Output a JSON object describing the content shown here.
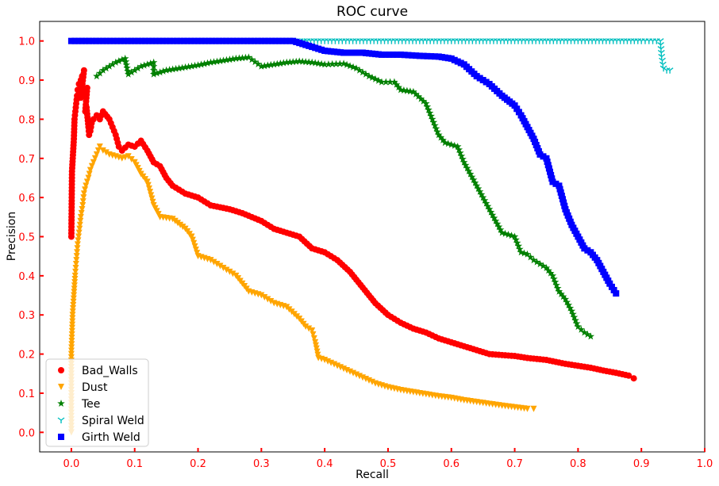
{
  "chart_data": {
    "type": "scatter",
    "title": "ROC curve",
    "xlabel": "Recall",
    "ylabel": "Precision",
    "xlim": [
      -0.05,
      1.0
    ],
    "ylim": [
      -0.05,
      1.05
    ],
    "xticks": [
      0.0,
      0.1,
      0.2,
      0.3,
      0.4,
      0.5,
      0.6,
      0.7,
      0.8,
      0.9,
      1.0
    ],
    "xtick_labels": [
      "0.0",
      "0.1",
      "0.2",
      "0.3",
      "0.4",
      "0.5",
      "0.6",
      "0.7",
      "0.8",
      "0.9",
      "1.0"
    ],
    "yticks": [
      0.0,
      0.1,
      0.2,
      0.3,
      0.4,
      0.5,
      0.6,
      0.7,
      0.8,
      0.9,
      1.0
    ],
    "ytick_labels": [
      "0.0",
      "0.1",
      "0.2",
      "0.3",
      "0.4",
      "0.5",
      "0.6",
      "0.7",
      "0.8",
      "0.9",
      "1.0"
    ],
    "tick_color": "#ff0000",
    "grid": false,
    "legend_position": "lower-left",
    "series": [
      {
        "name": "Bad_Walls",
        "color": "#ff0000",
        "marker": "circle",
        "points": [
          [
            0.0,
            0.5
          ],
          [
            0.001,
            0.667
          ],
          [
            0.004,
            0.75
          ],
          [
            0.005,
            0.8
          ],
          [
            0.007,
            0.83
          ],
          [
            0.009,
            0.86
          ],
          [
            0.01,
            0.875
          ],
          [
            0.012,
            0.89
          ],
          [
            0.015,
            0.9
          ],
          [
            0.017,
            0.91
          ],
          [
            0.02,
            0.925
          ],
          [
            0.015,
            0.855
          ],
          [
            0.018,
            0.86
          ],
          [
            0.022,
            0.87
          ],
          [
            0.025,
            0.88
          ],
          [
            0.022,
            0.82
          ],
          [
            0.024,
            0.83
          ],
          [
            0.027,
            0.78
          ],
          [
            0.028,
            0.76
          ],
          [
            0.03,
            0.77
          ],
          [
            0.032,
            0.79
          ],
          [
            0.035,
            0.8
          ],
          [
            0.04,
            0.81
          ],
          [
            0.045,
            0.8
          ],
          [
            0.05,
            0.82
          ],
          [
            0.06,
            0.8
          ],
          [
            0.065,
            0.78
          ],
          [
            0.07,
            0.76
          ],
          [
            0.075,
            0.73
          ],
          [
            0.08,
            0.72
          ],
          [
            0.09,
            0.735
          ],
          [
            0.1,
            0.73
          ],
          [
            0.11,
            0.745
          ],
          [
            0.12,
            0.72
          ],
          [
            0.13,
            0.69
          ],
          [
            0.14,
            0.68
          ],
          [
            0.15,
            0.65
          ],
          [
            0.16,
            0.63
          ],
          [
            0.18,
            0.61
          ],
          [
            0.2,
            0.6
          ],
          [
            0.22,
            0.58
          ],
          [
            0.25,
            0.57
          ],
          [
            0.27,
            0.56
          ],
          [
            0.3,
            0.54
          ],
          [
            0.32,
            0.52
          ],
          [
            0.34,
            0.51
          ],
          [
            0.36,
            0.5
          ],
          [
            0.38,
            0.47
          ],
          [
            0.4,
            0.46
          ],
          [
            0.42,
            0.44
          ],
          [
            0.44,
            0.41
          ],
          [
            0.46,
            0.37
          ],
          [
            0.48,
            0.33
          ],
          [
            0.5,
            0.3
          ],
          [
            0.52,
            0.28
          ],
          [
            0.54,
            0.265
          ],
          [
            0.56,
            0.255
          ],
          [
            0.58,
            0.24
          ],
          [
            0.6,
            0.23
          ],
          [
            0.62,
            0.22
          ],
          [
            0.64,
            0.21
          ],
          [
            0.66,
            0.2
          ],
          [
            0.7,
            0.195
          ],
          [
            0.72,
            0.19
          ],
          [
            0.75,
            0.185
          ],
          [
            0.78,
            0.175
          ],
          [
            0.8,
            0.17
          ],
          [
            0.82,
            0.165
          ],
          [
            0.84,
            0.158
          ],
          [
            0.86,
            0.152
          ],
          [
            0.88,
            0.145
          ],
          [
            0.888,
            0.138
          ]
        ]
      },
      {
        "name": "Dust",
        "color": "#ffa500",
        "marker": "triangle_down",
        "points": [
          [
            0.0,
            0.0
          ],
          [
            0.0,
            0.1
          ],
          [
            0.0,
            0.15
          ],
          [
            0.0,
            0.2
          ],
          [
            0.001,
            0.25
          ],
          [
            0.002,
            0.3
          ],
          [
            0.004,
            0.35
          ],
          [
            0.006,
            0.4
          ],
          [
            0.008,
            0.44
          ],
          [
            0.01,
            0.48
          ],
          [
            0.013,
            0.52
          ],
          [
            0.015,
            0.55
          ],
          [
            0.018,
            0.58
          ],
          [
            0.02,
            0.61
          ],
          [
            0.023,
            0.63
          ],
          [
            0.027,
            0.65
          ],
          [
            0.03,
            0.67
          ],
          [
            0.035,
            0.69
          ],
          [
            0.04,
            0.71
          ],
          [
            0.045,
            0.73
          ],
          [
            0.05,
            0.72
          ],
          [
            0.06,
            0.71
          ],
          [
            0.07,
            0.705
          ],
          [
            0.08,
            0.7
          ],
          [
            0.09,
            0.705
          ],
          [
            0.1,
            0.69
          ],
          [
            0.11,
            0.66
          ],
          [
            0.12,
            0.64
          ],
          [
            0.13,
            0.58
          ],
          [
            0.14,
            0.55
          ],
          [
            0.16,
            0.545
          ],
          [
            0.18,
            0.52
          ],
          [
            0.19,
            0.5
          ],
          [
            0.2,
            0.45
          ],
          [
            0.22,
            0.44
          ],
          [
            0.24,
            0.42
          ],
          [
            0.26,
            0.4
          ],
          [
            0.28,
            0.36
          ],
          [
            0.3,
            0.35
          ],
          [
            0.32,
            0.33
          ],
          [
            0.34,
            0.32
          ],
          [
            0.36,
            0.29
          ],
          [
            0.37,
            0.27
          ],
          [
            0.38,
            0.26
          ],
          [
            0.385,
            0.23
          ],
          [
            0.39,
            0.19
          ],
          [
            0.4,
            0.185
          ],
          [
            0.42,
            0.17
          ],
          [
            0.44,
            0.155
          ],
          [
            0.46,
            0.14
          ],
          [
            0.48,
            0.125
          ],
          [
            0.5,
            0.115
          ],
          [
            0.52,
            0.108
          ],
          [
            0.55,
            0.1
          ],
          [
            0.58,
            0.092
          ],
          [
            0.6,
            0.088
          ],
          [
            0.62,
            0.082
          ],
          [
            0.65,
            0.075
          ],
          [
            0.68,
            0.068
          ],
          [
            0.7,
            0.064
          ],
          [
            0.72,
            0.06
          ],
          [
            0.73,
            0.06
          ]
        ]
      },
      {
        "name": "Tee",
        "color": "#008000",
        "marker": "star",
        "points": [
          [
            0.04,
            0.91
          ],
          [
            0.05,
            0.925
          ],
          [
            0.06,
            0.935
          ],
          [
            0.07,
            0.945
          ],
          [
            0.08,
            0.952
          ],
          [
            0.085,
            0.955
          ],
          [
            0.09,
            0.915
          ],
          [
            0.1,
            0.925
          ],
          [
            0.11,
            0.935
          ],
          [
            0.12,
            0.94
          ],
          [
            0.13,
            0.945
          ],
          [
            0.13,
            0.915
          ],
          [
            0.15,
            0.925
          ],
          [
            0.17,
            0.93
          ],
          [
            0.2,
            0.938
          ],
          [
            0.22,
            0.945
          ],
          [
            0.24,
            0.95
          ],
          [
            0.26,
            0.955
          ],
          [
            0.28,
            0.958
          ],
          [
            0.3,
            0.935
          ],
          [
            0.32,
            0.94
          ],
          [
            0.34,
            0.945
          ],
          [
            0.36,
            0.948
          ],
          [
            0.38,
            0.945
          ],
          [
            0.4,
            0.94
          ],
          [
            0.43,
            0.942
          ],
          [
            0.45,
            0.93
          ],
          [
            0.47,
            0.91
          ],
          [
            0.49,
            0.895
          ],
          [
            0.51,
            0.895
          ],
          [
            0.52,
            0.875
          ],
          [
            0.54,
            0.87
          ],
          [
            0.56,
            0.84
          ],
          [
            0.57,
            0.8
          ],
          [
            0.58,
            0.76
          ],
          [
            0.59,
            0.74
          ],
          [
            0.61,
            0.73
          ],
          [
            0.62,
            0.69
          ],
          [
            0.63,
            0.66
          ],
          [
            0.64,
            0.63
          ],
          [
            0.65,
            0.6
          ],
          [
            0.66,
            0.57
          ],
          [
            0.67,
            0.54
          ],
          [
            0.68,
            0.51
          ],
          [
            0.7,
            0.5
          ],
          [
            0.71,
            0.46
          ],
          [
            0.72,
            0.455
          ],
          [
            0.73,
            0.44
          ],
          [
            0.75,
            0.42
          ],
          [
            0.76,
            0.4
          ],
          [
            0.77,
            0.36
          ],
          [
            0.78,
            0.34
          ],
          [
            0.79,
            0.31
          ],
          [
            0.8,
            0.27
          ],
          [
            0.81,
            0.255
          ],
          [
            0.82,
            0.245
          ]
        ]
      },
      {
        "name": "Spiral Weld",
        "color": "#00bfbf",
        "marker": "tri_down",
        "points": [
          [
            0.35,
            1.0
          ],
          [
            0.4,
            1.0
          ],
          [
            0.45,
            1.0
          ],
          [
            0.5,
            1.0
          ],
          [
            0.55,
            1.0
          ],
          [
            0.6,
            1.0
          ],
          [
            0.65,
            1.0
          ],
          [
            0.7,
            1.0
          ],
          [
            0.75,
            1.0
          ],
          [
            0.8,
            1.0
          ],
          [
            0.85,
            1.0
          ],
          [
            0.9,
            1.0
          ],
          [
            0.93,
            1.0
          ],
          [
            0.932,
            0.96
          ],
          [
            0.935,
            0.93
          ],
          [
            0.94,
            0.925
          ],
          [
            0.945,
            0.925
          ]
        ]
      },
      {
        "name": "Girth Weld",
        "color": "#0000ff",
        "marker": "square",
        "points": [
          [
            0.0,
            1.0
          ],
          [
            0.05,
            1.0
          ],
          [
            0.1,
            1.0
          ],
          [
            0.15,
            1.0
          ],
          [
            0.2,
            1.0
          ],
          [
            0.25,
            1.0
          ],
          [
            0.3,
            1.0
          ],
          [
            0.35,
            1.0
          ],
          [
            0.37,
            0.99
          ],
          [
            0.4,
            0.975
          ],
          [
            0.43,
            0.97
          ],
          [
            0.46,
            0.97
          ],
          [
            0.49,
            0.965
          ],
          [
            0.52,
            0.965
          ],
          [
            0.55,
            0.962
          ],
          [
            0.58,
            0.96
          ],
          [
            0.6,
            0.955
          ],
          [
            0.62,
            0.94
          ],
          [
            0.64,
            0.91
          ],
          [
            0.66,
            0.89
          ],
          [
            0.68,
            0.86
          ],
          [
            0.7,
            0.835
          ],
          [
            0.71,
            0.81
          ],
          [
            0.72,
            0.78
          ],
          [
            0.73,
            0.75
          ],
          [
            0.74,
            0.71
          ],
          [
            0.75,
            0.7
          ],
          [
            0.76,
            0.64
          ],
          [
            0.77,
            0.63
          ],
          [
            0.78,
            0.57
          ],
          [
            0.79,
            0.53
          ],
          [
            0.8,
            0.5
          ],
          [
            0.81,
            0.47
          ],
          [
            0.82,
            0.46
          ],
          [
            0.83,
            0.44
          ],
          [
            0.84,
            0.41
          ],
          [
            0.85,
            0.38
          ],
          [
            0.86,
            0.355
          ]
        ]
      }
    ]
  }
}
